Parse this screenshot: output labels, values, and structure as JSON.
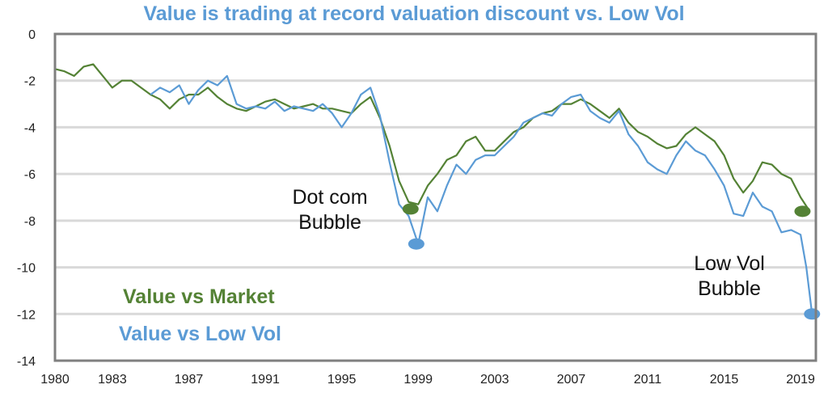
{
  "chart_data": {
    "type": "line",
    "title": "Value is trading at record valuation discount vs. Low Vol",
    "xlabel": "",
    "ylabel": "",
    "xlim": [
      1980,
      2019.8
    ],
    "ylim": [
      -14,
      0
    ],
    "grid": true,
    "x_ticks": [
      "1980",
      "1983",
      "1987",
      "1991",
      "1995",
      "1999",
      "2003",
      "2007",
      "2011",
      "2015",
      "2019"
    ],
    "y_ticks": [
      "0",
      "-2",
      "-4",
      "-6",
      "-8",
      "-10",
      "-12",
      "-14"
    ],
    "colors": {
      "market": "#548235",
      "lowvol": "#5b9bd5",
      "grid": "#d9d9d9",
      "frame": "#7f7f7f"
    },
    "legend_placement": "bottom-left",
    "series": [
      {
        "name": "Value vs Market",
        "x": [
          1980.0,
          1980.5,
          1981.0,
          1981.5,
          1982.0,
          1982.5,
          1983.0,
          1983.5,
          1984.0,
          1984.5,
          1985.0,
          1985.5,
          1986.0,
          1986.5,
          1987.0,
          1987.5,
          1988.0,
          1988.5,
          1989.0,
          1989.5,
          1990.0,
          1990.5,
          1991.0,
          1991.5,
          1992.0,
          1992.5,
          1993.0,
          1993.5,
          1994.0,
          1994.5,
          1995.0,
          1995.5,
          1996.0,
          1996.5,
          1997.0,
          1997.5,
          1998.0,
          1998.5,
          1999.0,
          1999.5,
          2000.0,
          2000.5,
          2001.0,
          2001.5,
          2002.0,
          2002.5,
          2003.0,
          2003.5,
          2004.0,
          2004.5,
          2005.0,
          2005.5,
          2006.0,
          2006.5,
          2007.0,
          2007.5,
          2008.0,
          2008.5,
          2009.0,
          2009.5,
          2010.0,
          2010.5,
          2011.0,
          2011.5,
          2012.0,
          2012.5,
          2013.0,
          2013.5,
          2014.0,
          2014.5,
          2015.0,
          2015.5,
          2016.0,
          2016.5,
          2017.0,
          2017.5,
          2018.0,
          2018.5,
          2019.0,
          2019.4
        ],
        "values": [
          -1.5,
          -1.6,
          -1.8,
          -1.4,
          -1.3,
          -1.8,
          -2.3,
          -2.0,
          -2.0,
          -2.3,
          -2.6,
          -2.8,
          -3.2,
          -2.8,
          -2.6,
          -2.6,
          -2.3,
          -2.7,
          -3.0,
          -3.2,
          -3.3,
          -3.1,
          -2.9,
          -2.8,
          -3.0,
          -3.2,
          -3.1,
          -3.0,
          -3.2,
          -3.2,
          -3.3,
          -3.4,
          -3.0,
          -2.7,
          -3.6,
          -4.8,
          -6.3,
          -7.2,
          -7.3,
          -6.5,
          -6.0,
          -5.4,
          -5.2,
          -4.6,
          -4.4,
          -5.0,
          -5.0,
          -4.6,
          -4.2,
          -4.0,
          -3.6,
          -3.4,
          -3.3,
          -3.0,
          -3.0,
          -2.8,
          -3.0,
          -3.3,
          -3.6,
          -3.2,
          -3.8,
          -4.2,
          -4.4,
          -4.7,
          -4.9,
          -4.8,
          -4.3,
          -4.0,
          -4.3,
          -4.6,
          -5.2,
          -6.2,
          -6.8,
          -6.3,
          -5.5,
          -5.6,
          -6.0,
          -6.2,
          -7.0,
          -7.5
        ]
      },
      {
        "name": "Value vs Low Vol",
        "x": [
          1985.0,
          1985.5,
          1986.0,
          1986.5,
          1987.0,
          1987.5,
          1988.0,
          1988.5,
          1989.0,
          1989.5,
          1990.0,
          1990.5,
          1991.0,
          1991.5,
          1992.0,
          1992.5,
          1993.0,
          1993.5,
          1994.0,
          1994.5,
          1995.0,
          1995.5,
          1996.0,
          1996.5,
          1997.0,
          1997.5,
          1998.0,
          1998.5,
          1999.0,
          1999.5,
          2000.0,
          2000.5,
          2001.0,
          2001.5,
          2002.0,
          2002.5,
          2003.0,
          2003.5,
          2004.0,
          2004.5,
          2005.0,
          2005.5,
          2006.0,
          2006.5,
          2007.0,
          2007.5,
          2008.0,
          2008.5,
          2009.0,
          2009.5,
          2010.0,
          2010.5,
          2011.0,
          2011.5,
          2012.0,
          2012.5,
          2013.0,
          2013.5,
          2014.0,
          2014.5,
          2015.0,
          2015.5,
          2016.0,
          2016.5,
          2017.0,
          2017.5,
          2018.0,
          2018.5,
          2019.0,
          2019.3,
          2019.6
        ],
        "values": [
          -2.6,
          -2.3,
          -2.5,
          -2.2,
          -3.0,
          -2.4,
          -2.0,
          -2.2,
          -1.8,
          -3.0,
          -3.2,
          -3.1,
          -3.2,
          -2.9,
          -3.3,
          -3.1,
          -3.2,
          -3.3,
          -3.0,
          -3.4,
          -4.0,
          -3.4,
          -2.6,
          -2.3,
          -3.5,
          -5.5,
          -7.3,
          -7.8,
          -9.0,
          -7.0,
          -7.6,
          -6.5,
          -5.6,
          -6.0,
          -5.4,
          -5.2,
          -5.2,
          -4.8,
          -4.4,
          -3.8,
          -3.6,
          -3.4,
          -3.5,
          -3.0,
          -2.7,
          -2.6,
          -3.3,
          -3.6,
          -3.8,
          -3.3,
          -4.3,
          -4.8,
          -5.5,
          -5.8,
          -6.0,
          -5.2,
          -4.6,
          -5.0,
          -5.2,
          -5.8,
          -6.5,
          -7.7,
          -7.8,
          -6.8,
          -7.4,
          -7.6,
          -8.5,
          -8.4,
          -8.6,
          -10.0,
          -12.0
        ]
      }
    ],
    "annotations": [
      {
        "lines": [
          "Dot com",
          "Bubble"
        ]
      },
      {
        "lines": [
          "Low Vol",
          "Bubble"
        ]
      }
    ],
    "markers": [
      {
        "x": 1998.6,
        "y": -7.5,
        "series": "market"
      },
      {
        "x": 1998.9,
        "y": -9.0,
        "series": "lowvol"
      },
      {
        "x": 2019.1,
        "y": -7.6,
        "series": "market"
      },
      {
        "x": 2019.6,
        "y": -12.0,
        "series": "lowvol"
      }
    ]
  }
}
